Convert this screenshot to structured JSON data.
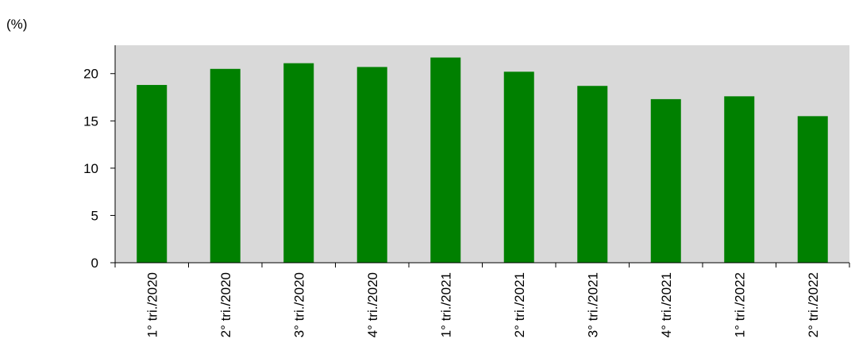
{
  "chart_data": {
    "type": "bar",
    "unit_label": "(%)",
    "categories": [
      "1° tri./2020",
      "2° tri./2020",
      "3° tri./2020",
      "4° tri./2020",
      "1° tri./2021",
      "2° tri./2021",
      "3° tri./2021",
      "4° tri./2021",
      "1° tri./2022",
      "2° tri./2022"
    ],
    "values": [
      18.8,
      20.5,
      21.1,
      20.7,
      21.7,
      20.2,
      18.7,
      17.3,
      17.6,
      15.5
    ],
    "ylim": [
      0,
      23
    ],
    "yticks": [
      "0",
      "5",
      "10",
      "15",
      "20"
    ],
    "grid": false,
    "colors": {
      "bar": "#008000",
      "plot_background": "#d9d9d9"
    }
  }
}
